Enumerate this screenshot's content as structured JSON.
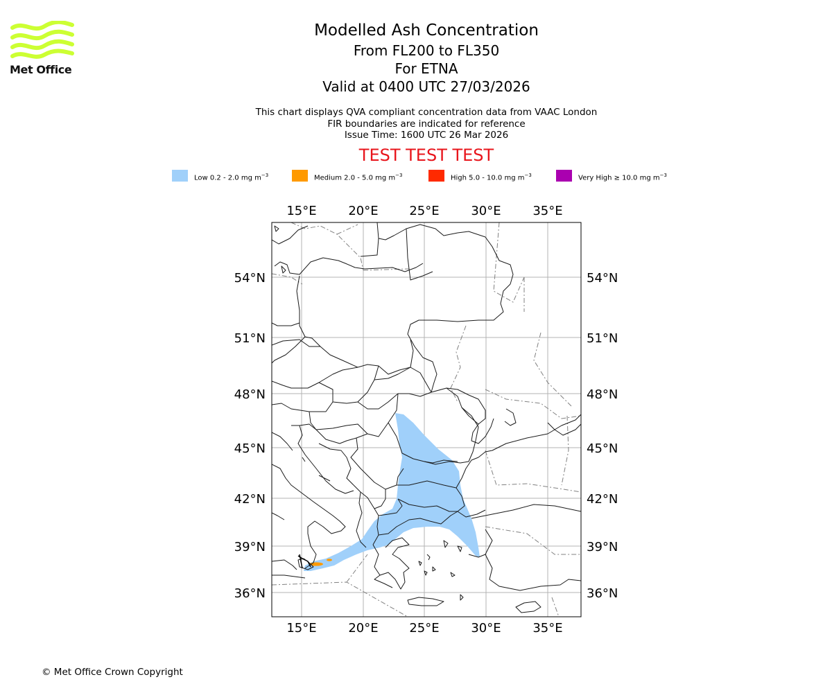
{
  "logo": {
    "text": "Met Office",
    "colors": {
      "waves": "#ccff33",
      "text": "#111111"
    }
  },
  "title": {
    "main": "Modelled Ash Concentration",
    "levels": "From FL200 to FL350",
    "volcano": "For ETNA",
    "valid": "Valid at 0400 UTC 27/03/2026"
  },
  "subtitle": {
    "line1": "This chart displays QVA compliant concentration data from VAAC London",
    "line2": "FIR boundaries are indicated for reference",
    "line3": "Issue Time: 1600 UTC 26 Mar 2026"
  },
  "test_banner": "TEST TEST TEST",
  "legend": [
    {
      "label": "Low 0.2 - 2.0 mg m",
      "color": "#a0d0fa"
    },
    {
      "label": "Medium 2.0 - 5.0 mg m",
      "color": "#ff9a00"
    },
    {
      "label": "High 5.0 - 10.0 mg m",
      "color": "#ff2a00"
    },
    {
      "label": "Very High  ≥  10.0 mg m",
      "color": "#aa00b0"
    }
  ],
  "legend_unit_exponent": "−3",
  "map": {
    "lon_ticks": [
      "15°E",
      "20°E",
      "25°E",
      "30°E",
      "35°E"
    ],
    "lat_ticks": [
      "54°N",
      "51°N",
      "48°N",
      "45°N",
      "42°N",
      "39°N",
      "36°N"
    ],
    "extent": {
      "lon": [
        12.5,
        37.7
      ],
      "lat": [
        34.8,
        56.8
      ]
    }
  },
  "copyright": "© Met Office Crown Copyright"
}
